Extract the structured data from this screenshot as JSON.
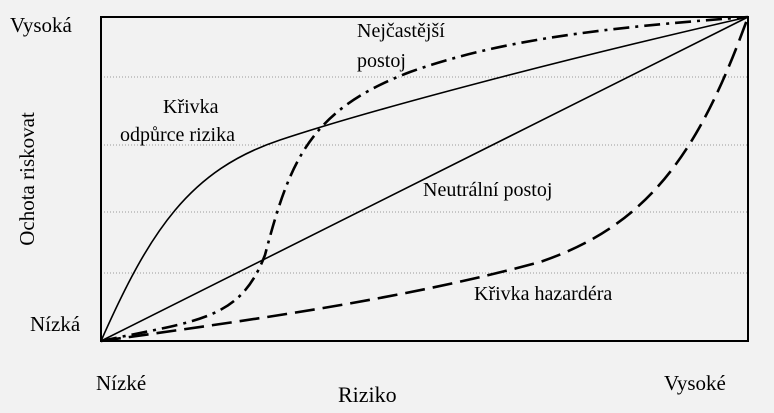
{
  "labels": {
    "y_high": "Vysoká",
    "y_low": "Nízká",
    "y_axis": "Ochota riskovat",
    "x_low": "Nízké",
    "x_high": "Vysoké",
    "x_axis": "Riziko"
  },
  "curves": {
    "averse_line1": "Křivka",
    "averse_line2": "odpůrce rizika",
    "common_line1": "Nejčastější",
    "common_line2": "postoj",
    "neutral": "Neutrální postoj",
    "seeker": "Křivka hazardéra"
  },
  "colors": {
    "background": "#f2f2f2",
    "line": "#000000",
    "grid": "#9a9a9a"
  }
}
